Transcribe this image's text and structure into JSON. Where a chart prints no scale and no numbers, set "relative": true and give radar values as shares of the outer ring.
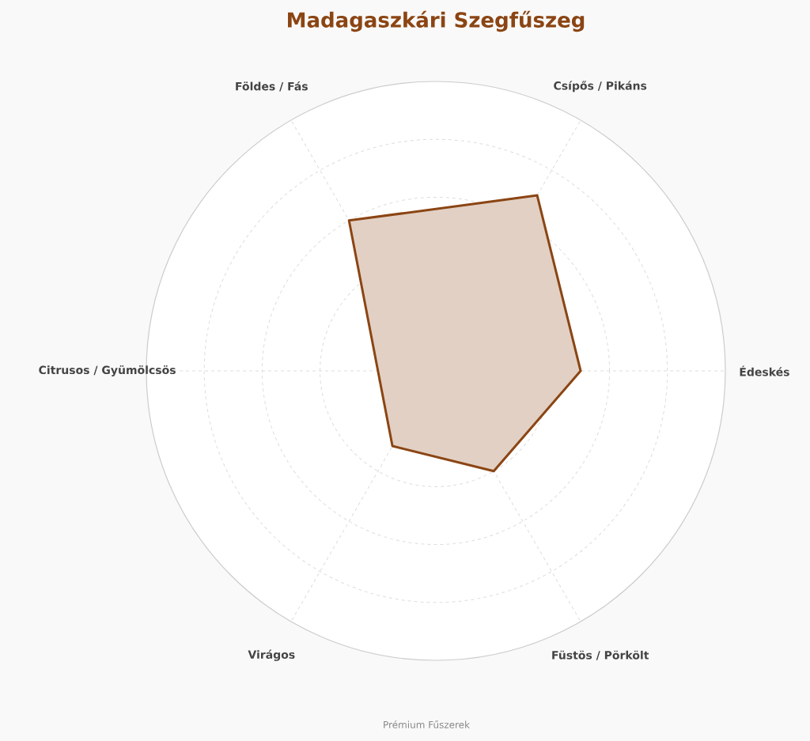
{
  "chart_data": {
    "type": "radar",
    "title": "Madagaszkári Szegfűszeg",
    "categories": [
      "Csípős / Pikáns",
      "Édeskés",
      "Füstös / Pörkölt",
      "Virágos",
      "Citrusos / Gyümölcsös",
      "Földes / Fás"
    ],
    "relative": true,
    "grid": true,
    "series": [
      {
        "color": "#8b4513",
        "values": [
          0.7,
          0.5,
          0.4,
          0.3,
          0.2,
          0.6
        ]
      }
    ],
    "annotations": [
      "Prémium Fűszerek"
    ]
  }
}
